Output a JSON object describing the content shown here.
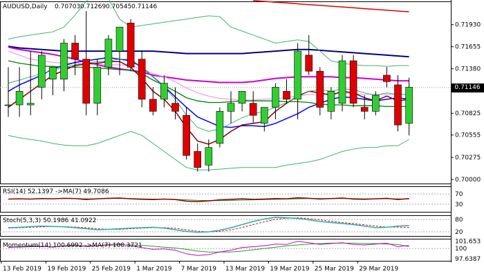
{
  "chart_data": {
    "type": "candlestick",
    "title": "AUDUSD,Daily",
    "ohlc_header": [
      "0.70703",
      "0.71269",
      "0.70545",
      "0.71146"
    ],
    "current_price": "0.71146",
    "price_axis": {
      "ylim": [
        0.6995,
        0.7222
      ],
      "ticks": [
        "0.71930",
        "0.71655",
        "0.71380",
        "0.71110",
        "0.70825",
        "0.70555",
        "0.70275",
        "0.70000"
      ]
    },
    "x_ticks": [
      "13 Feb 2019",
      "19 Feb 2019",
      "25 Feb 2019",
      "1 Mar 2019",
      "7 Mar 2019",
      "13 Mar 2019",
      "19 Mar 2019",
      "25 Mar 2019",
      "29 Mar 2019"
    ],
    "candles": [
      {
        "o": 0.7093,
        "h": 0.714,
        "l": 0.7078,
        "c": 0.7093
      },
      {
        "o": 0.7093,
        "h": 0.714,
        "l": 0.7078,
        "c": 0.711
      },
      {
        "o": 0.7093,
        "h": 0.716,
        "l": 0.708,
        "c": 0.7095
      },
      {
        "o": 0.7115,
        "h": 0.716,
        "l": 0.71,
        "c": 0.7155
      },
      {
        "o": 0.7125,
        "h": 0.714,
        "l": 0.7105,
        "c": 0.714
      },
      {
        "o": 0.7125,
        "h": 0.7175,
        "l": 0.711,
        "c": 0.717
      },
      {
        "o": 0.717,
        "h": 0.718,
        "l": 0.713,
        "c": 0.715
      },
      {
        "o": 0.715,
        "h": 0.721,
        "l": 0.708,
        "c": 0.7095
      },
      {
        "o": 0.7095,
        "h": 0.715,
        "l": 0.708,
        "c": 0.714
      },
      {
        "o": 0.714,
        "h": 0.718,
        "l": 0.713,
        "c": 0.7175
      },
      {
        "o": 0.716,
        "h": 0.719,
        "l": 0.713,
        "c": 0.719
      },
      {
        "o": 0.7195,
        "h": 0.72,
        "l": 0.7135,
        "c": 0.714
      },
      {
        "o": 0.715,
        "h": 0.716,
        "l": 0.709,
        "c": 0.71
      },
      {
        "o": 0.71,
        "h": 0.7115,
        "l": 0.708,
        "c": 0.7085
      },
      {
        "o": 0.71,
        "h": 0.713,
        "l": 0.709,
        "c": 0.712
      },
      {
        "o": 0.7095,
        "h": 0.7115,
        "l": 0.7075,
        "c": 0.7085
      },
      {
        "o": 0.708,
        "h": 0.709,
        "l": 0.7025,
        "c": 0.703
      },
      {
        "o": 0.7035,
        "h": 0.7045,
        "l": 0.701,
        "c": 0.7015
      },
      {
        "o": 0.7018,
        "h": 0.705,
        "l": 0.701,
        "c": 0.704
      },
      {
        "o": 0.7045,
        "h": 0.709,
        "l": 0.704,
        "c": 0.7085
      },
      {
        "o": 0.7085,
        "h": 0.711,
        "l": 0.707,
        "c": 0.7095
      },
      {
        "o": 0.7095,
        "h": 0.711,
        "l": 0.7085,
        "c": 0.711
      },
      {
        "o": 0.7095,
        "h": 0.711,
        "l": 0.707,
        "c": 0.708
      },
      {
        "o": 0.707,
        "h": 0.709,
        "l": 0.706,
        "c": 0.709
      },
      {
        "o": 0.709,
        "h": 0.712,
        "l": 0.7075,
        "c": 0.7115
      },
      {
        "o": 0.711,
        "h": 0.7125,
        "l": 0.7095,
        "c": 0.71
      },
      {
        "o": 0.71,
        "h": 0.717,
        "l": 0.7075,
        "c": 0.716
      },
      {
        "o": 0.7155,
        "h": 0.718,
        "l": 0.713,
        "c": 0.7135
      },
      {
        "o": 0.7135,
        "h": 0.714,
        "l": 0.708,
        "c": 0.709
      },
      {
        "o": 0.7085,
        "h": 0.7115,
        "l": 0.7075,
        "c": 0.711
      },
      {
        "o": 0.7095,
        "h": 0.7155,
        "l": 0.7085,
        "c": 0.7148
      },
      {
        "o": 0.7148,
        "h": 0.7155,
        "l": 0.709,
        "c": 0.7095
      },
      {
        "o": 0.709,
        "h": 0.7105,
        "l": 0.7075,
        "c": 0.7085
      },
      {
        "o": 0.7085,
        "h": 0.711,
        "l": 0.708,
        "c": 0.7105
      },
      {
        "o": 0.713,
        "h": 0.714,
        "l": 0.7115,
        "c": 0.7122
      },
      {
        "o": 0.7118,
        "h": 0.713,
        "l": 0.706,
        "c": 0.7068
      },
      {
        "o": 0.707,
        "h": 0.7127,
        "l": 0.7055,
        "c": 0.7115
      }
    ],
    "overlays": [
      {
        "color": "#000080",
        "width": 2,
        "values": [
          0.7166,
          0.7164,
          0.7163,
          0.7162,
          0.7161,
          0.716,
          0.716,
          0.716,
          0.716,
          0.716,
          0.716,
          0.716,
          0.716,
          0.716,
          0.7159,
          0.7158,
          0.7157,
          0.7157,
          0.7157,
          0.7157,
          0.7157,
          0.7157,
          0.7158,
          0.7159,
          0.716,
          0.7161,
          0.7162,
          0.7162,
          0.7161,
          0.716,
          0.7159,
          0.7158,
          0.7157,
          0.7156,
          0.7155,
          0.7154,
          0.7153
        ]
      },
      {
        "color": "#cc00cc",
        "width": 2,
        "values": [
          0.7165,
          0.7162,
          0.716,
          0.7158,
          0.7156,
          0.7153,
          0.715,
          0.7146,
          0.7143,
          0.714,
          0.7138,
          0.7136,
          0.7134,
          0.713,
          0.7128,
          0.7126,
          0.7124,
          0.7123,
          0.7122,
          0.7121,
          0.7121,
          0.7121,
          0.7122,
          0.7124,
          0.7126,
          0.7127,
          0.7128,
          0.7128,
          0.7128,
          0.7128,
          0.7127,
          0.7127,
          0.7126,
          0.7125,
          0.7124,
          0.7123,
          0.7123
        ]
      },
      {
        "color": "#f0a0f0",
        "width": 1.3,
        "values": [
          0.716,
          0.7155,
          0.715,
          0.7148,
          0.7146,
          0.7145,
          0.7145,
          0.7144,
          0.7144,
          0.7143,
          0.7143,
          0.7142,
          0.7138,
          0.7132,
          0.7128,
          0.7122,
          0.7114,
          0.7108,
          0.7104,
          0.7101,
          0.71,
          0.7099,
          0.7099,
          0.71,
          0.7101,
          0.7102,
          0.7104,
          0.7106,
          0.7106,
          0.7107,
          0.7108,
          0.7107,
          0.7106,
          0.7106,
          0.7106,
          0.7106,
          0.7106
        ]
      },
      {
        "color": "#008000",
        "width": 1.3,
        "values": [
          0.7148,
          0.7145,
          0.7143,
          0.7141,
          0.7141,
          0.714,
          0.714,
          0.714,
          0.7139,
          0.7138,
          0.7137,
          0.7136,
          0.7132,
          0.7124,
          0.7117,
          0.711,
          0.7102,
          0.7098,
          0.7096,
          0.7096,
          0.7097,
          0.7098,
          0.7098,
          0.7098,
          0.7098,
          0.7097,
          0.7097,
          0.7096,
          0.7094,
          0.7093,
          0.7093,
          0.7092,
          0.7092,
          0.7092,
          0.7091,
          0.7091,
          0.7091
        ]
      },
      {
        "color": "#0000ff",
        "width": 1.5,
        "values": [
          0.711,
          0.7118,
          0.7124,
          0.713,
          0.7138,
          0.7142,
          0.7146,
          0.7148,
          0.715,
          0.7152,
          0.715,
          0.7148,
          0.714,
          0.7128,
          0.7116,
          0.7103,
          0.709,
          0.7078,
          0.7072,
          0.7066,
          0.7065,
          0.7067,
          0.7067,
          0.7066,
          0.707,
          0.7076,
          0.7082,
          0.709,
          0.7095,
          0.71,
          0.7103,
          0.7102,
          0.71,
          0.7098,
          0.71,
          0.7102,
          0.71
        ]
      },
      {
        "color": "#800000",
        "width": 1.5,
        "values": [
          0.709,
          0.71,
          0.711,
          0.712,
          0.713,
          0.7136,
          0.7142,
          0.7144,
          0.7145,
          0.7147,
          0.7147,
          0.714,
          0.7126,
          0.711,
          0.71,
          0.7085,
          0.7065,
          0.7048,
          0.7044,
          0.705,
          0.706,
          0.7068,
          0.707,
          0.7072,
          0.7085,
          0.7095,
          0.7104,
          0.711,
          0.7108,
          0.7105,
          0.711,
          0.7108,
          0.7102,
          0.7098,
          0.7104,
          0.7098,
          0.71
        ]
      },
      {
        "color": "#3cb371",
        "width": 1,
        "values": [
          0.712,
          0.7124,
          0.7128,
          0.7132,
          0.7136,
          0.714,
          0.7143,
          0.7145,
          0.7147,
          0.7148,
          0.715,
          0.715,
          0.714,
          0.7128,
          0.7115,
          0.71,
          0.708,
          0.7065,
          0.706,
          0.7063,
          0.707,
          0.7077,
          0.7082,
          0.7085,
          0.709,
          0.7096,
          0.7103,
          0.711,
          0.7112,
          0.711,
          0.7113,
          0.7112,
          0.7108,
          0.7105,
          0.7108,
          0.7106,
          0.7106
        ]
      },
      {
        "color": "#3cb371",
        "width": 1,
        "values": [
          0.7175,
          0.7178,
          0.718,
          0.7182,
          0.7184,
          0.719,
          0.7205,
          0.7222,
          0.7235,
          0.7225,
          0.72,
          0.719,
          0.7192,
          0.7194,
          0.7196,
          0.7198,
          0.72,
          0.7202,
          0.7204,
          0.7203,
          0.719,
          0.7185,
          0.718,
          0.7175,
          0.717,
          0.7172,
          0.7174,
          0.7172,
          0.716,
          0.7148,
          0.7145,
          0.7143,
          0.7142,
          0.7142,
          0.7141,
          0.7142,
          0.7142
        ]
      },
      {
        "color": "#3cb371",
        "width": 1,
        "values": [
          0.7055,
          0.7052,
          0.705,
          0.7048,
          0.7045,
          0.7043,
          0.7042,
          0.7042,
          0.7045,
          0.705,
          0.7055,
          0.706,
          0.7055,
          0.7045,
          0.7035,
          0.7025,
          0.7015,
          0.7012,
          0.7012,
          0.7013,
          0.7014,
          0.7015,
          0.7015,
          0.7015,
          0.7015,
          0.7018,
          0.702,
          0.7022,
          0.7025,
          0.703,
          0.7035,
          0.7038,
          0.704,
          0.704,
          0.7042,
          0.7042,
          0.705
        ]
      },
      {
        "color": "#e00000",
        "width": 1.5,
        "start": 22,
        "values": [
          0.7223,
          0.7222,
          0.7221,
          0.722,
          0.7219,
          0.7218,
          0.7217,
          0.7216,
          0.7215,
          0.7214,
          0.7213,
          0.7212,
          0.7211,
          0.721,
          0.7209
        ]
      }
    ],
    "rsi": {
      "label": "RSI(14) 52.1397 ->MA(7) 49.7086",
      "ticks": [
        "70",
        "30"
      ],
      "levels": [
        70,
        30
      ],
      "ylim": [
        0,
        100
      ],
      "rsi_values": [
        50,
        51,
        50,
        52,
        51,
        53,
        52,
        48,
        51,
        53,
        54,
        51,
        49,
        48,
        50,
        48,
        42,
        40,
        43,
        47,
        49,
        51,
        49,
        50,
        52,
        51,
        55,
        53,
        50,
        52,
        54,
        50,
        49,
        51,
        53,
        48,
        52
      ],
      "ma_values": [
        50,
        50,
        50,
        51,
        51,
        52,
        52,
        51,
        51,
        52,
        52,
        52,
        51,
        50,
        50,
        49,
        47,
        45,
        44,
        44,
        45,
        46,
        47,
        48,
        49,
        50,
        51,
        52,
        52,
        52,
        52,
        52,
        51,
        51,
        51,
        51,
        50
      ]
    },
    "stoch": {
      "label": "Stoch(5,3,3) 50.1986 41.0922",
      "ticks": [
        "80",
        "20"
      ],
      "levels": [
        80,
        20
      ],
      "ylim": [
        0,
        100
      ],
      "k_values": [
        40,
        42,
        45,
        48,
        46,
        44,
        40,
        35,
        30,
        32,
        35,
        38,
        40,
        42,
        38,
        30,
        22,
        18,
        20,
        28,
        40,
        55,
        70,
        82,
        90,
        88,
        85,
        78,
        70,
        65,
        60,
        55,
        48,
        40,
        42,
        48,
        50
      ],
      "d_values": [
        38,
        40,
        42,
        44,
        46,
        45,
        43,
        40,
        35,
        32,
        32,
        35,
        38,
        40,
        40,
        37,
        30,
        23,
        20,
        22,
        30,
        41,
        55,
        69,
        80,
        86,
        88,
        84,
        78,
        71,
        65,
        60,
        54,
        48,
        43,
        43,
        41
      ]
    },
    "momentum": {
      "label": "Momentum(14) 100.6992 ->MA(7) 100.3721",
      "ticks": [
        "101.653",
        "100",
        "97.6387"
      ],
      "level": 100,
      "ylim": [
        97.2,
        102.2
      ],
      "mom_values": [
        100.2,
        100.4,
        100.6,
        100.5,
        100.3,
        100.6,
        100.8,
        100.4,
        100.6,
        100.9,
        101.0,
        100.6,
        100.2,
        99.8,
        99.9,
        99.6,
        98.8,
        98.4,
        98.6,
        99.2,
        99.6,
        100.2,
        100.4,
        100.6,
        101.0,
        100.9,
        101.6,
        101.3,
        100.9,
        101.1,
        101.3,
        100.9,
        100.8,
        101.0,
        101.2,
        100.4,
        100.7
      ],
      "ma_values": [
        100.3,
        100.3,
        100.4,
        100.4,
        100.4,
        100.5,
        100.6,
        100.6,
        100.6,
        100.7,
        100.8,
        100.8,
        100.7,
        100.5,
        100.3,
        100.1,
        99.8,
        99.4,
        99.2,
        99.2,
        99.2,
        99.4,
        99.7,
        100.0,
        100.3,
        100.6,
        100.8,
        101.0,
        101.1,
        101.2,
        101.2,
        101.2,
        101.1,
        101.1,
        101.0,
        100.9,
        100.4
      ]
    },
    "colors": {
      "bull": "#32cd32",
      "bear": "#e00000",
      "stoch_k": "#20b2aa",
      "stoch_d": "#e00000",
      "rsi": "#8b0000",
      "rsi_ma": "#228b22",
      "mom": "#cc00cc",
      "mom_ma": "#20a020"
    }
  }
}
